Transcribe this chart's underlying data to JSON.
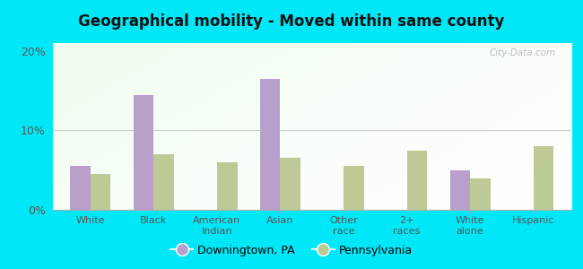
{
  "title": "Geographical mobility - Moved within same county",
  "categories": [
    "White",
    "Black",
    "American\nIndian",
    "Asian",
    "Other\nrace",
    "2+\nraces",
    "White\nalone",
    "Hispanic"
  ],
  "downingtown": [
    5.5,
    14.5,
    0,
    16.5,
    0,
    0,
    5.0,
    0
  ],
  "pennsylvania": [
    4.5,
    7.0,
    6.0,
    6.5,
    5.5,
    7.5,
    4.0,
    8.0
  ],
  "bar_color_city": "#b89fcc",
  "bar_color_state": "#beca96",
  "ylim": [
    0,
    21
  ],
  "yticks": [
    0,
    10,
    20
  ],
  "ytick_labels": [
    "0%",
    "10%",
    "20%"
  ],
  "legend_city": "Downingtown, PA",
  "legend_state": "Pennsylvania",
  "bg_outer": "#00e8f8",
  "watermark": "City-Data.com"
}
